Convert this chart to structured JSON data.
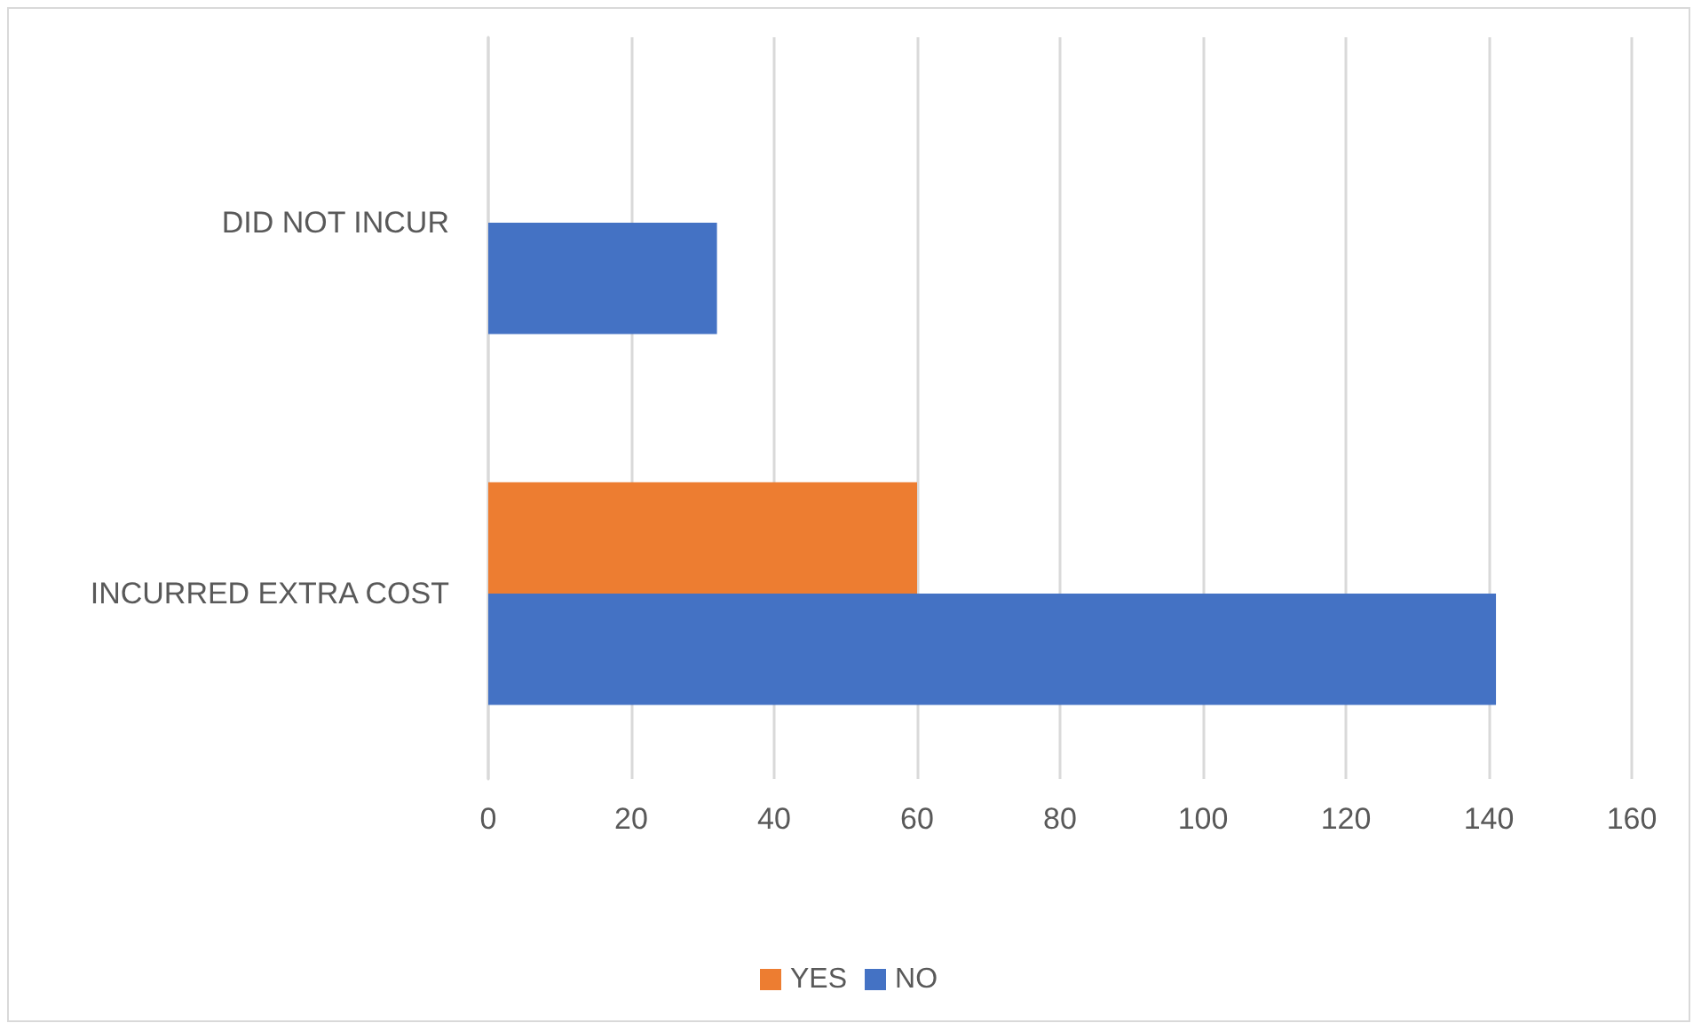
{
  "chart_data": {
    "type": "bar",
    "orientation": "horizontal",
    "categories": [
      "DID NOT INCUR",
      "INCURRED EXTRA COST"
    ],
    "series": [
      {
        "name": "YES",
        "color": "#ed7d31",
        "values": [
          null,
          60
        ]
      },
      {
        "name": "NO",
        "color": "#4472c4",
        "values": [
          32,
          141
        ]
      }
    ],
    "xlim": [
      0,
      160
    ],
    "xticks": [
      0,
      20,
      40,
      60,
      80,
      100,
      120,
      140,
      160
    ],
    "grid": "x",
    "legend": "bottom"
  }
}
